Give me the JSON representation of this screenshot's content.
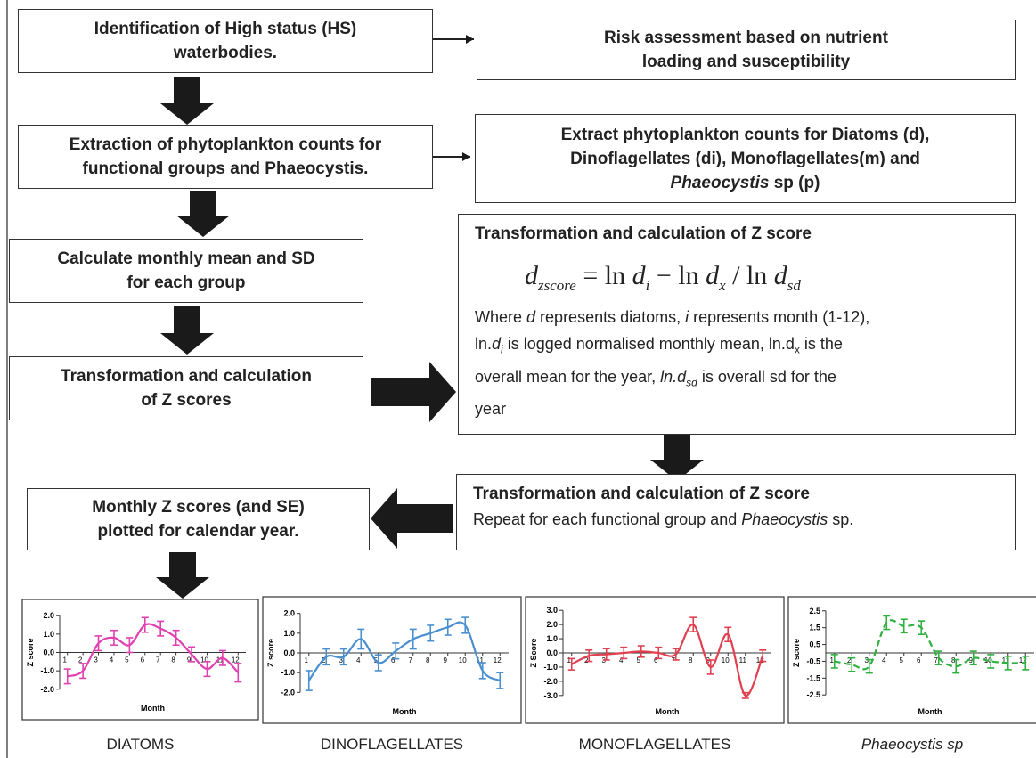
{
  "boxes": [
    {
      "lines": [
        [
          "Identification of High status (HS)"
        ],
        [
          "waterbodies."
        ]
      ]
    },
    {
      "lines": [
        [
          "Risk assessment based on nutrient"
        ],
        [
          "loading and susceptibility"
        ]
      ]
    },
    {
      "lines": [
        [
          "Extraction of phytoplankton counts for"
        ],
        [
          "functional groups and Phaeocystis."
        ]
      ]
    },
    {
      "lines": [
        [
          "Extract phytoplankton counts for Diatoms (d),"
        ],
        [
          "Dinoflagellates (di), Monoflagellates(m) and"
        ],
        [
          "Phaeocystis",
          " sp (p)"
        ]
      ]
    },
    {
      "lines": [
        [
          "Calculate monthly mean and SD"
        ],
        [
          "for each group"
        ]
      ]
    },
    {
      "title": "Transformation and calculation of Z score",
      "formula": [
        "d",
        "zscore",
        " = ln ",
        "d",
        "i",
        " − ln ",
        "d",
        "x",
        " / ln ",
        "d",
        "sd"
      ],
      "lines": [
        [
          "Where ",
          "d",
          " represents diatoms, ",
          "i",
          " represents month (1-12),"
        ],
        [
          "ln.",
          "d",
          "i",
          " is logged normalised monthly mean, ln.d",
          "x",
          "  is the"
        ],
        [
          "overall mean for the year, ",
          "ln.d",
          "sd",
          " is overall sd for the"
        ],
        [
          "year"
        ]
      ]
    },
    {
      "lines": [
        [
          "Transformation and calculation"
        ],
        [
          "of Z scores"
        ]
      ]
    },
    {
      "title": "Transformation and calculation of Z score",
      "lines": [
        [
          "Repeat for each functional group and ",
          "Phaeocystis",
          " sp."
        ]
      ]
    },
    {
      "lines": [
        [
          "Monthly Z scores (and SE)"
        ],
        [
          "plotted for calendar year."
        ]
      ]
    }
  ],
  "charts": [
    {
      "type": "line",
      "title": "DIATOMS",
      "xlabel": "Month",
      "ylabel": "Z score",
      "color": "#e040b0",
      "dashed": false,
      "x": [
        1,
        2,
        3,
        4,
        5,
        6,
        7,
        8,
        9,
        10,
        11,
        12
      ],
      "xticks": [
        1,
        2,
        3,
        4,
        5,
        6,
        7,
        8,
        9,
        10,
        11,
        12
      ],
      "xlim": [
        0.5,
        12.5
      ],
      "values": [
        -1.3,
        -1.0,
        0.5,
        0.8,
        0.4,
        1.5,
        1.3,
        0.8,
        -0.1,
        -0.9,
        -0.3,
        -1.1
      ],
      "errors": [
        0.4,
        0.4,
        0.4,
        0.4,
        0.4,
        0.4,
        0.4,
        0.4,
        0.4,
        0.4,
        0.4,
        0.5
      ],
      "ylim": [
        -2.3,
        2.3
      ],
      "yticks": [
        {
          "value": 2,
          "label": "2.0"
        },
        {
          "value": 1,
          "label": "1.0"
        },
        {
          "value": 0,
          "label": "0.0"
        },
        {
          "value": -1,
          "label": "-1.0"
        },
        {
          "value": -2,
          "label": "-2.0"
        }
      ]
    },
    {
      "type": "line",
      "title": "DINOFLAGELLATES",
      "xlabel": "Month",
      "ylabel": "Z score",
      "color": "#4a90d0",
      "dashed": false,
      "x": [
        1,
        2,
        3,
        4,
        5,
        6,
        7,
        8,
        9,
        10,
        11,
        12
      ],
      "xticks": [
        1,
        2,
        3,
        4,
        5,
        6,
        7,
        8,
        9,
        10,
        11,
        12
      ],
      "xlim": [
        0.5,
        12.5
      ],
      "values": [
        -1.4,
        -0.2,
        -0.2,
        0.7,
        -0.5,
        0.1,
        0.7,
        1.0,
        1.3,
        1.4,
        -0.9,
        -1.4
      ],
      "errors": [
        0.5,
        0.4,
        0.4,
        0.5,
        0.4,
        0.4,
        0.5,
        0.4,
        0.4,
        0.4,
        0.4,
        0.4
      ],
      "ylim": [
        -2.3,
        2.3
      ],
      "yticks": [
        {
          "value": 2,
          "label": "2.0"
        },
        {
          "value": 1,
          "label": "1.0"
        },
        {
          "value": 0,
          "label": "0.0"
        },
        {
          "value": -1,
          "label": "-1.0"
        },
        {
          "value": -2,
          "label": "-2.0"
        }
      ]
    },
    {
      "type": "line",
      "title": "MONOFLAGELLATES",
      "xlabel": "Month",
      "ylabel": "Z Score",
      "color": "#e04050",
      "dashed": false,
      "x": [
        1,
        2,
        3,
        4,
        5,
        6,
        7,
        8,
        9,
        10,
        11,
        12
      ],
      "xticks": [
        1,
        2,
        3,
        4,
        5,
        6,
        7,
        8,
        9,
        10,
        11,
        12
      ],
      "xlim": [
        0.5,
        12.5
      ],
      "values": [
        -0.8,
        -0.2,
        -0.1,
        0.0,
        0.1,
        0.0,
        -0.1,
        2.0,
        -1.0,
        1.3,
        -3.0,
        -0.2
      ],
      "errors": [
        0.4,
        0.4,
        0.4,
        0.4,
        0.4,
        0.4,
        0.4,
        0.5,
        0.5,
        0.5,
        0.2,
        0.4
      ],
      "ylim": [
        -3.2,
        3.2
      ],
      "yticks": [
        {
          "value": 3,
          "label": "3.0"
        },
        {
          "value": 2,
          "label": "2.0"
        },
        {
          "value": 1,
          "label": "1.0"
        },
        {
          "value": 0,
          "label": "0.0"
        },
        {
          "value": -1,
          "label": "-1.0"
        },
        {
          "value": -2,
          "label": "-2.0"
        },
        {
          "value": -3,
          "label": "-3.0"
        }
      ]
    },
    {
      "type": "line",
      "title": "Phaeocystis sp",
      "xlabel": "Month",
      "ylabel": "Z score",
      "color": "#30b040",
      "dashed": true,
      "x": [
        1,
        2,
        3,
        4,
        5,
        6,
        7,
        8,
        9,
        10,
        11,
        12
      ],
      "xticks": [
        1,
        2,
        3,
        4,
        5,
        6,
        7,
        8,
        9,
        10,
        11,
        12
      ],
      "xlim": [
        0.5,
        12.5
      ],
      "values": [
        -0.5,
        -0.7,
        -0.8,
        1.8,
        1.6,
        1.5,
        -0.3,
        -0.8,
        -0.3,
        -0.5,
        -0.6,
        -0.6
      ],
      "errors": [
        0.4,
        0.4,
        0.4,
        0.4,
        0.4,
        0.4,
        0.4,
        0.4,
        0.4,
        0.4,
        0.4,
        0.4
      ],
      "ylim": [
        -2.7,
        2.7
      ],
      "yticks": [
        2.5,
        1.5,
        0.5,
        -0.5,
        -1.5,
        -2.5
      ]
    }
  ]
}
